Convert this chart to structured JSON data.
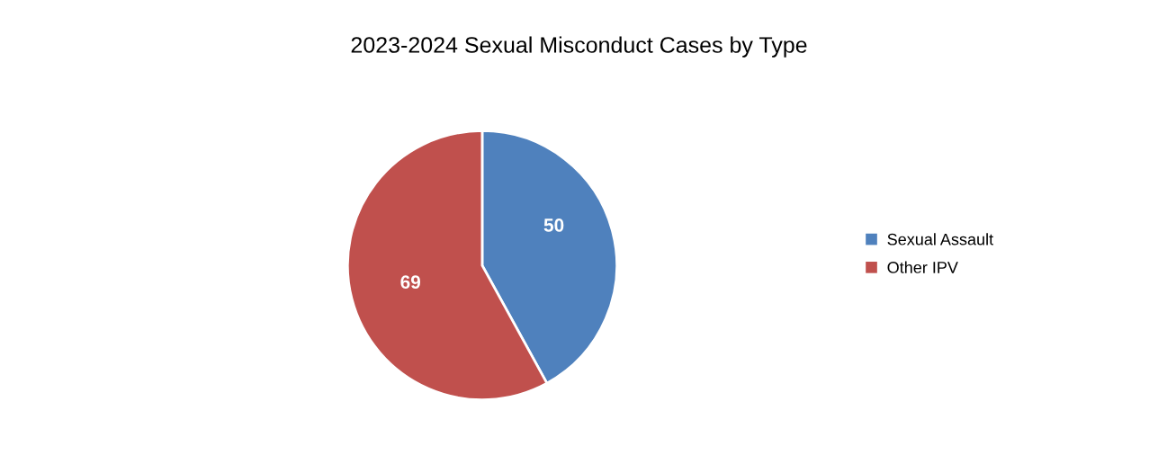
{
  "chart_data": {
    "type": "pie",
    "title": "2023-2024 Sexual Misconduct Cases by Type",
    "categories": [
      "Sexual Assault",
      "Other IPV"
    ],
    "values": [
      50,
      69
    ],
    "colors": [
      "#4f81bd",
      "#c0504d"
    ],
    "data_labels": true,
    "legend": "right"
  }
}
